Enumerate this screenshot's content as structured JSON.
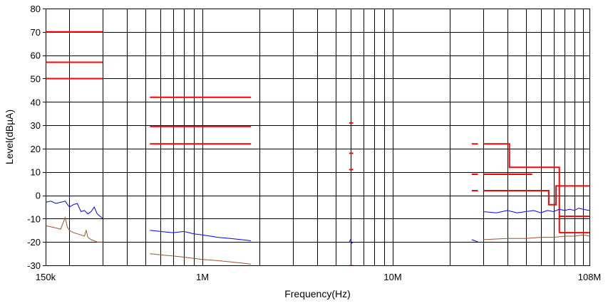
{
  "chart_data": {
    "type": "line",
    "xlabel": "Frequency(Hz)",
    "ylabel": "Level(dBµA)",
    "x_scale": "log",
    "xlim": [
      150000,
      108000000
    ],
    "ylim": [
      -30,
      80
    ],
    "grid": true,
    "x_tick_labels": [
      {
        "value": 150000,
        "label": "150k"
      },
      {
        "value": 1000000,
        "label": "1M"
      },
      {
        "value": 10000000,
        "label": "10M"
      },
      {
        "value": 108000000,
        "label": "108M"
      }
    ],
    "y_ticks": [
      -30,
      -20,
      -10,
      0,
      10,
      20,
      30,
      40,
      50,
      60,
      70,
      80
    ],
    "colors": {
      "limit": "#ff0000",
      "peak": "#0000ff",
      "average": "#a0522d",
      "grid": "#000000"
    },
    "limit_lines": [
      {
        "x": [
          150000,
          300000
        ],
        "y": [
          70,
          70
        ]
      },
      {
        "x": [
          150000,
          300000
        ],
        "y": [
          57,
          57
        ]
      },
      {
        "x": [
          150000,
          300000
        ],
        "y": [
          50,
          50
        ]
      },
      {
        "x": [
          530000,
          1800000
        ],
        "y": [
          42,
          42
        ]
      },
      {
        "x": [
          530000,
          1800000
        ],
        "y": [
          29.5,
          29.5
        ]
      },
      {
        "x": [
          530000,
          1800000
        ],
        "y": [
          22,
          22
        ]
      },
      {
        "x": [
          5900000,
          6200000
        ],
        "y": [
          31,
          31
        ]
      },
      {
        "x": [
          5900000,
          6200000
        ],
        "y": [
          18,
          18
        ]
      },
      {
        "x": [
          5900000,
          6200000
        ],
        "y": [
          11,
          11
        ]
      },
      {
        "x": [
          26000000,
          28000000
        ],
        "y": [
          22,
          22
        ]
      },
      {
        "x": [
          26000000,
          28000000
        ],
        "y": [
          9,
          9
        ]
      },
      {
        "x": [
          26000000,
          28000000
        ],
        "y": [
          2,
          2
        ]
      },
      {
        "x": [
          30000000,
          41000000,
          41000000,
          75000000,
          75000000
        ],
        "y": [
          22,
          22,
          12,
          12,
          -16
        ]
      },
      {
        "x": [
          30000000,
          54000000
        ],
        "y": [
          9,
          9
        ]
      },
      {
        "x": [
          30000000,
          66000000,
          66000000,
          72000000,
          72000000,
          108000000
        ],
        "y": [
          2,
          2,
          -4,
          -4,
          4,
          4
        ]
      },
      {
        "x": [
          75000000,
          108000000
        ],
        "y": [
          -9,
          -9
        ]
      },
      {
        "x": [
          75000000,
          108000000
        ],
        "y": [
          -16,
          -16
        ]
      }
    ],
    "series": [
      {
        "color_key": "peak",
        "segments": [
          {
            "x": [
              150000,
              160000,
              170000,
              180000,
              190000,
              200000,
              210000,
              220000,
              230000,
              240000,
              250000,
              260000,
              270000,
              280000,
              290000,
              300000
            ],
            "y": [
              -3,
              -2.5,
              -3.5,
              -3,
              -2.5,
              -5,
              -4,
              -3.5,
              -7,
              -6.5,
              -8,
              -7,
              -5,
              -8,
              -9,
              -10
            ]
          },
          {
            "x": [
              530000,
              600000,
              700000,
              800000,
              900000,
              1000000,
              1100000,
              1200000,
              1400000,
              1600000,
              1800000
            ],
            "y": [
              -15,
              -15.5,
              -16,
              -15.5,
              -16.5,
              -17,
              -17.5,
              -18,
              -18.5,
              -19,
              -19.5
            ]
          },
          {
            "x": [
              5900000,
              6000000,
              6100000,
              6200000
            ],
            "y": [
              -20,
              -19,
              -20.5,
              -20
            ]
          },
          {
            "x": [
              26000000,
              27000000,
              28000000
            ],
            "y": [
              -19,
              -19.5,
              -20
            ]
          },
          {
            "x": [
              30000000,
              35000000,
              40000000,
              45000000,
              50000000,
              55000000,
              60000000,
              65000000,
              70000000,
              75000000,
              80000000,
              85000000,
              90000000,
              95000000,
              100000000,
              108000000
            ],
            "y": [
              -7,
              -7.5,
              -6.5,
              -7.5,
              -7,
              -6.5,
              -7.5,
              -6.5,
              -7,
              -6,
              -6.5,
              -6,
              -6.5,
              -5.5,
              -6,
              -6.5
            ]
          }
        ]
      },
      {
        "color_key": "average",
        "segments": [
          {
            "x": [
              150000,
              160000,
              170000,
              180000,
              185000,
              190000,
              195000,
              200000,
              210000,
              220000,
              230000,
              240000,
              245000,
              250000,
              260000,
              270000,
              280000,
              290000,
              300000
            ],
            "y": [
              -13,
              -13.5,
              -14,
              -14.5,
              -12,
              -9.5,
              -13.5,
              -15,
              -16,
              -16.5,
              -17,
              -17.5,
              -15,
              -18,
              -19,
              -19.5,
              -20,
              -20,
              -20
            ]
          },
          {
            "x": [
              530000,
              600000,
              700000,
              800000,
              900000,
              1000000,
              1200000,
              1400000,
              1600000,
              1800000
            ],
            "y": [
              -25,
              -25.5,
              -26,
              -26.5,
              -27,
              -27.5,
              -28,
              -28.5,
              -29,
              -29.5
            ]
          },
          {
            "x": [
              5900000,
              6000000,
              6100000,
              6200000
            ],
            "y": [
              -30,
              -30,
              -30,
              -30
            ]
          },
          {
            "x": [
              30000000,
              40000000,
              50000000,
              60000000,
              70000000,
              80000000,
              90000000,
              100000000,
              108000000
            ],
            "y": [
              -19,
              -18.5,
              -18.5,
              -18,
              -18,
              -17.5,
              -17.5,
              -17,
              -17.5
            ]
          }
        ]
      }
    ]
  }
}
